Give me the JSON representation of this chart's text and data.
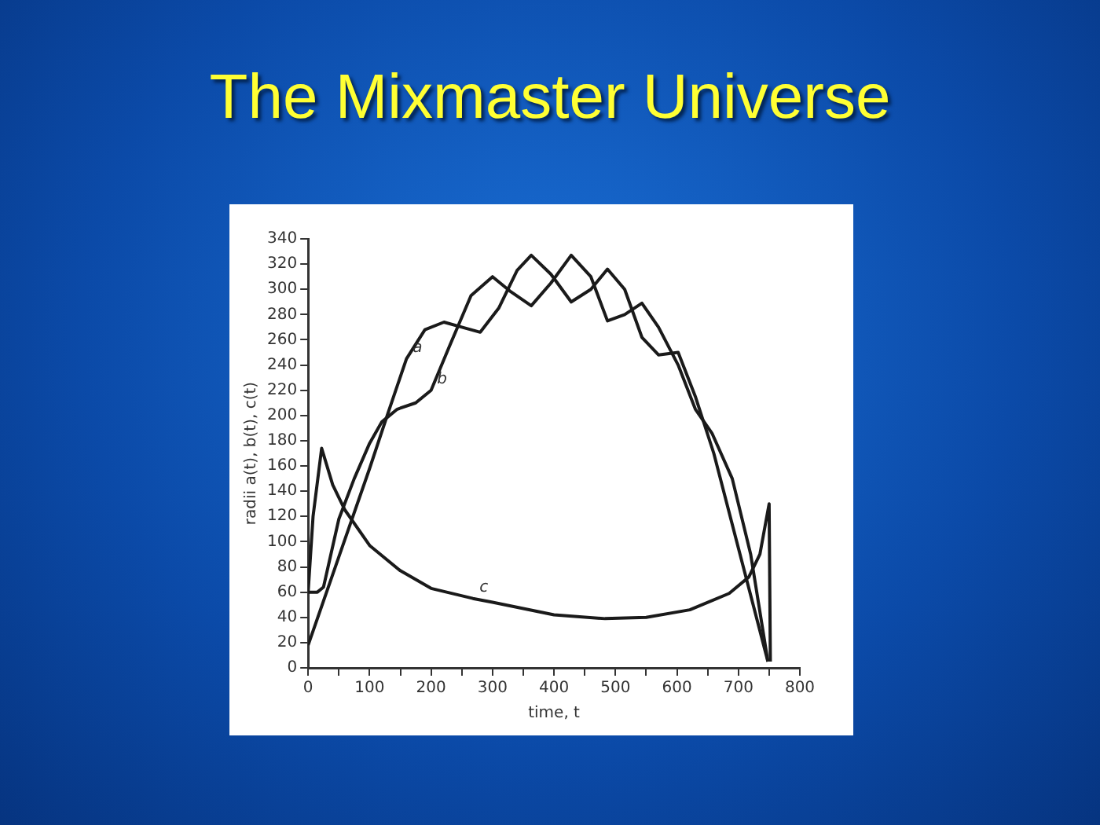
{
  "chart_data": {
    "type": "line",
    "title": "The Mixmaster Universe",
    "xlabel": "time, t",
    "ylabel": "radii a(t), b(t), c(t)",
    "xlim": [
      0,
      800
    ],
    "xticks": [
      0,
      {
        "value": 50,
        "label": null
      },
      100,
      {
        "value": 150,
        "label": null
      },
      200,
      {
        "value": 250,
        "label": null
      },
      300,
      {
        "value": 350,
        "label": null
      },
      400,
      {
        "value": 450,
        "label": null
      },
      500,
      {
        "value": 550,
        "label": null
      },
      600,
      {
        "value": 650,
        "label": null
      },
      700,
      {
        "value": 750,
        "label": null
      },
      800
    ],
    "ylim": [
      0,
      340
    ],
    "yticks": [
      0,
      20,
      40,
      60,
      80,
      100,
      120,
      140,
      160,
      180,
      200,
      220,
      240,
      260,
      280,
      300,
      320,
      340
    ],
    "grid": false,
    "legend": false,
    "marker": "none",
    "line_style": "solid",
    "series": [
      {
        "color": "#1a1a1a",
        "x": [
          0,
          50,
          100,
          130,
          160,
          190,
          221,
          250,
          280,
          310,
          340,
          363,
          395,
          428,
          460,
          487,
          515,
          543,
          570,
          602,
          630,
          660,
          700,
          748
        ],
        "values": [
          18,
          88,
          158,
          202,
          245,
          268,
          274,
          270,
          266,
          285,
          315,
          327,
          312,
          290,
          300,
          316,
          300,
          262,
          248,
          250,
          215,
          170,
          95,
          5
        ]
      },
      {
        "color": "#1a1a1a",
        "x": [
          0,
          15,
          25,
          50,
          75,
          100,
          120,
          145,
          175,
          200,
          230,
          265,
          300,
          330,
          363,
          395,
          428,
          460,
          487,
          515,
          543,
          570,
          602,
          630,
          657,
          690,
          720,
          748
        ],
        "values": [
          60,
          60,
          64,
          118,
          150,
          178,
          195,
          205,
          210,
          220,
          255,
          295,
          310,
          298,
          287,
          305,
          327,
          310,
          275,
          280,
          289,
          270,
          240,
          205,
          186,
          150,
          90,
          5
        ]
      },
      {
        "color": "#1a1a1a",
        "x": [
          0,
          8,
          22,
          40,
          60,
          100,
          150,
          200,
          268,
          300,
          400,
          483,
          550,
          621,
          685,
          717,
          735,
          750,
          752
        ],
        "values": [
          60,
          120,
          174,
          145,
          125,
          97,
          77,
          63,
          55,
          52,
          42,
          39,
          40,
          46,
          59,
          72,
          90,
          130,
          5
        ]
      }
    ],
    "annotations": [
      {
        "text": "a",
        "x": 160,
        "y": 245
      },
      {
        "text": "b",
        "x": 200,
        "y": 220
      },
      {
        "text": "c",
        "x": 268,
        "y": 55
      }
    ]
  }
}
